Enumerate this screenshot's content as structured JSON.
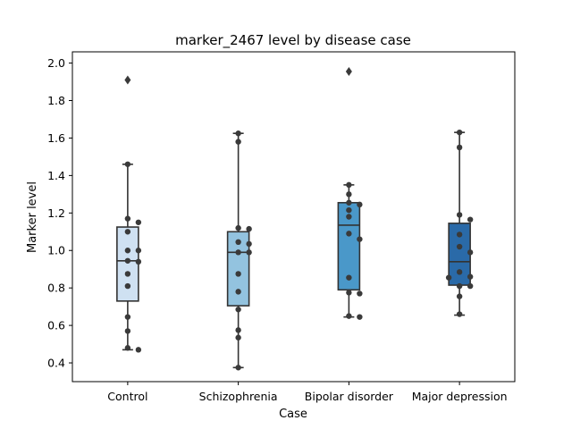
{
  "chart_data": {
    "type": "box",
    "title": "marker_2467 level by disease case",
    "xlabel": "Case",
    "ylabel": "Marker level",
    "ylim": [
      0.3,
      2.06
    ],
    "yticks": [
      "0.4",
      "0.6",
      "0.8",
      "1.0",
      "1.2",
      "1.4",
      "1.6",
      "1.8",
      "2.0"
    ],
    "categories": [
      "Control",
      "Schizophrenia",
      "Bipolar disorder",
      "Major depression"
    ],
    "colors": [
      "#cfe1f2",
      "#93c3df",
      "#4a98c9",
      "#2a6aa8"
    ],
    "boxes": [
      {
        "q1": 0.73,
        "median": 0.945,
        "q3": 1.125,
        "whisker_low": 0.47,
        "whisker_high": 1.46,
        "outliers": [
          1.91
        ]
      },
      {
        "q1": 0.705,
        "median": 0.99,
        "q3": 1.1,
        "whisker_low": 0.375,
        "whisker_high": 1.625,
        "outliers": []
      },
      {
        "q1": 0.79,
        "median": 1.135,
        "q3": 1.255,
        "whisker_low": 0.645,
        "whisker_high": 1.35,
        "outliers": [
          1.955
        ]
      },
      {
        "q1": 0.815,
        "median": 0.94,
        "q3": 1.145,
        "whisker_low": 0.655,
        "whisker_high": 1.63,
        "outliers": []
      }
    ],
    "points": [
      [
        1.46,
        1.17,
        1.15,
        1.1,
        1.0,
        1.0,
        0.945,
        0.94,
        0.875,
        0.81,
        0.645,
        0.57,
        0.48,
        0.47
      ],
      [
        1.625,
        1.58,
        1.12,
        1.115,
        1.045,
        1.035,
        0.99,
        0.99,
        0.875,
        0.78,
        0.685,
        0.575,
        0.535,
        0.375
      ],
      [
        1.35,
        1.3,
        1.255,
        1.245,
        1.215,
        1.18,
        1.09,
        1.06,
        0.855,
        0.775,
        0.77,
        0.65,
        0.645
      ],
      [
        1.63,
        1.55,
        1.19,
        1.165,
        1.085,
        1.02,
        0.99,
        0.885,
        0.86,
        0.855,
        0.81,
        0.81,
        0.755,
        0.66
      ]
    ]
  }
}
